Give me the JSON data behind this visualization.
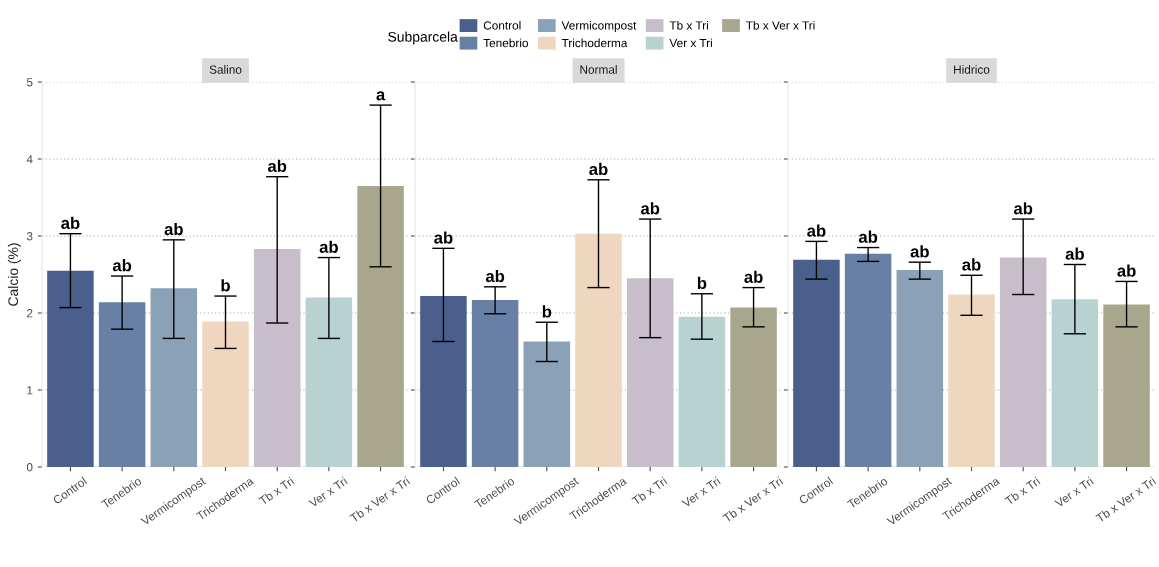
{
  "chart_data": [
    {
      "type": "bar",
      "title": "Salino",
      "ylabel": "Calcio (%)",
      "legend_title": "Subparcela",
      "legend": "top",
      "categories": [
        "Control",
        "Tenebrio",
        "Vermicompost",
        "Trichoderma",
        "Tb x Tri",
        "Ver x Tri",
        "Tb x Ver x Tri"
      ],
      "series": [
        {
          "name": "Control",
          "color": "#4a5f8c",
          "values": [
            2.55,
            null,
            null,
            null,
            null,
            null,
            null
          ],
          "errors": [
            [
              2.07,
              3.03
            ],
            null,
            null,
            null,
            null,
            null,
            null
          ]
        },
        {
          "name": "Tenebrio",
          "color": "#687fa6",
          "values": [
            null,
            2.14,
            null,
            null,
            null,
            null,
            null
          ],
          "errors": [
            null,
            [
              1.79,
              2.48
            ],
            null,
            null,
            null,
            null,
            null
          ]
        },
        {
          "name": "Vermicompost",
          "color": "#8aa1b7",
          "values": [
            null,
            null,
            2.32,
            null,
            null,
            null,
            null
          ],
          "errors": [
            null,
            null,
            [
              1.67,
              2.95
            ],
            null,
            null,
            null,
            null
          ]
        },
        {
          "name": "Trichoderma",
          "color": "#efd7bf",
          "values": [
            null,
            null,
            null,
            1.89,
            null,
            null,
            null
          ],
          "errors": [
            null,
            null,
            null,
            [
              1.54,
              2.22
            ],
            null,
            null,
            null
          ]
        },
        {
          "name": "Tb x Tri",
          "color": "#c8bdcb",
          "values": [
            null,
            null,
            null,
            null,
            2.83,
            null,
            null
          ],
          "errors": [
            null,
            null,
            null,
            null,
            [
              1.87,
              3.77
            ],
            null,
            null
          ]
        },
        {
          "name": "Ver x Tri",
          "color": "#b8d1d1",
          "values": [
            null,
            null,
            null,
            null,
            null,
            2.2,
            null
          ],
          "errors": [
            null,
            null,
            null,
            null,
            null,
            [
              1.67,
              2.72
            ],
            null
          ]
        },
        {
          "name": "Tb x Ver x Tri",
          "color": "#a8a78d",
          "values": [
            null,
            null,
            null,
            null,
            null,
            null,
            3.65
          ],
          "errors": [
            null,
            null,
            null,
            null,
            null,
            null,
            [
              2.6,
              4.7
            ]
          ]
        }
      ],
      "annotations": [
        {
          "text": "ab",
          "x": "Control",
          "y": 3.03
        },
        {
          "text": "ab",
          "x": "Tenebrio",
          "y": 2.48
        },
        {
          "text": "ab",
          "x": "Vermicompost",
          "y": 2.95
        },
        {
          "text": "b",
          "x": "Trichoderma",
          "y": 2.22
        },
        {
          "text": "ab",
          "x": "Tb x Tri",
          "y": 3.77
        },
        {
          "text": "ab",
          "x": "Ver x Tri",
          "y": 2.72
        },
        {
          "text": "a",
          "x": "Tb x Ver x Tri",
          "y": 4.7
        }
      ],
      "ylim": [
        0,
        5
      ],
      "yticks": [
        0,
        1,
        2,
        3,
        4,
        5
      ],
      "grid": "y"
    },
    {
      "type": "bar",
      "title": "Normal",
      "categories": [
        "Control",
        "Tenebrio",
        "Vermicompost",
        "Trichoderma",
        "Tb x Tri",
        "Ver x Tri",
        "Tb x Ver x Tri"
      ],
      "series": [
        {
          "color": "#4a5f8c",
          "values": [
            2.22,
            null,
            null,
            null,
            null,
            null,
            null
          ],
          "errors": [
            [
              1.63,
              2.84
            ],
            null,
            null,
            null,
            null,
            null,
            null
          ]
        },
        {
          "color": "#687fa6",
          "values": [
            null,
            2.17,
            null,
            null,
            null,
            null,
            null
          ],
          "errors": [
            null,
            [
              1.99,
              2.34
            ],
            null,
            null,
            null,
            null,
            null
          ]
        },
        {
          "color": "#8aa1b7",
          "values": [
            null,
            null,
            1.63,
            null,
            null,
            null,
            null
          ],
          "errors": [
            null,
            null,
            [
              1.37,
              1.88
            ],
            null,
            null,
            null,
            null
          ]
        },
        {
          "color": "#efd7bf",
          "values": [
            null,
            null,
            null,
            3.03,
            null,
            null,
            null
          ],
          "errors": [
            null,
            null,
            null,
            [
              2.33,
              3.73
            ],
            null,
            null,
            null
          ]
        },
        {
          "color": "#c8bdcb",
          "values": [
            null,
            null,
            null,
            null,
            2.45,
            null,
            null
          ],
          "errors": [
            null,
            null,
            null,
            null,
            [
              1.68,
              3.22
            ],
            null,
            null
          ]
        },
        {
          "color": "#b8d1d1",
          "values": [
            null,
            null,
            null,
            null,
            null,
            1.95,
            null
          ],
          "errors": [
            null,
            null,
            null,
            null,
            null,
            [
              1.66,
              2.25
            ],
            null
          ]
        },
        {
          "color": "#a8a78d",
          "values": [
            null,
            null,
            null,
            null,
            null,
            null,
            2.07
          ],
          "errors": [
            null,
            null,
            null,
            null,
            null,
            null,
            [
              1.82,
              2.33
            ]
          ]
        }
      ],
      "annotations": [
        {
          "text": "ab",
          "x": "Control",
          "y": 2.84
        },
        {
          "text": "ab",
          "x": "Tenebrio",
          "y": 2.34
        },
        {
          "text": "b",
          "x": "Vermicompost",
          "y": 1.88
        },
        {
          "text": "ab",
          "x": "Trichoderma",
          "y": 3.73
        },
        {
          "text": "ab",
          "x": "Tb x Tri",
          "y": 3.22
        },
        {
          "text": "b",
          "x": "Ver x Tri",
          "y": 2.25
        },
        {
          "text": "ab",
          "x": "Tb x Ver x Tri",
          "y": 2.33
        }
      ],
      "ylim": [
        0,
        5
      ],
      "yticks": [
        0,
        1,
        2,
        3,
        4,
        5
      ],
      "grid": "y",
      "tick_labels": "x"
    },
    {
      "type": "bar",
      "title": "Hidrico",
      "categories": [
        "Control",
        "Tenebrio",
        "Vermicompost",
        "Trichoderma",
        "Tb x Tri",
        "Ver x Tri",
        "Tb x Ver x Tri"
      ],
      "series": [
        {
          "color": "#4a5f8c",
          "values": [
            2.69,
            null,
            null,
            null,
            null,
            null,
            null
          ],
          "errors": [
            [
              2.44,
              2.93
            ],
            null,
            null,
            null,
            null,
            null,
            null
          ]
        },
        {
          "color": "#687fa6",
          "values": [
            null,
            2.77,
            null,
            null,
            null,
            null,
            null
          ],
          "errors": [
            null,
            [
              2.67,
              2.85
            ],
            null,
            null,
            null,
            null,
            null
          ]
        },
        {
          "color": "#8aa1b7",
          "values": [
            null,
            null,
            2.56,
            null,
            null,
            null,
            null
          ],
          "errors": [
            null,
            null,
            [
              2.44,
              2.66
            ],
            null,
            null,
            null,
            null
          ]
        },
        {
          "color": "#efd7bf",
          "values": [
            null,
            null,
            null,
            2.24,
            null,
            null,
            null
          ],
          "errors": [
            null,
            null,
            null,
            [
              1.97,
              2.49
            ],
            null,
            null,
            null
          ]
        },
        {
          "color": "#c8bdcb",
          "values": [
            null,
            null,
            null,
            null,
            2.72,
            null,
            null
          ],
          "errors": [
            null,
            null,
            null,
            null,
            [
              2.24,
              3.22
            ],
            null,
            null
          ]
        },
        {
          "color": "#b8d1d1",
          "values": [
            null,
            null,
            null,
            null,
            null,
            2.18,
            null
          ],
          "errors": [
            null,
            null,
            null,
            null,
            null,
            [
              1.73,
              2.63
            ],
            null
          ]
        },
        {
          "color": "#a8a78d",
          "values": [
            null,
            null,
            null,
            null,
            null,
            null,
            2.11
          ],
          "errors": [
            null,
            null,
            null,
            null,
            null,
            null,
            [
              1.82,
              2.41
            ]
          ]
        }
      ],
      "annotations": [
        {
          "text": "ab",
          "x": "Control",
          "y": 2.93
        },
        {
          "text": "ab",
          "x": "Tenebrio",
          "y": 2.85
        },
        {
          "text": "ab",
          "x": "Vermicompost",
          "y": 2.66
        },
        {
          "text": "ab",
          "x": "Trichoderma",
          "y": 2.49
        },
        {
          "text": "ab",
          "x": "Tb x Tri",
          "y": 3.22
        },
        {
          "text": "ab",
          "x": "Ver x Tri",
          "y": 2.63
        },
        {
          "text": "ab",
          "x": "Tb x Ver x Tri",
          "y": 2.41
        }
      ],
      "ylim": [
        0,
        5
      ],
      "yticks": [
        0,
        1,
        2,
        3,
        4,
        5
      ],
      "grid": "y",
      "tick_labels": "x"
    }
  ]
}
